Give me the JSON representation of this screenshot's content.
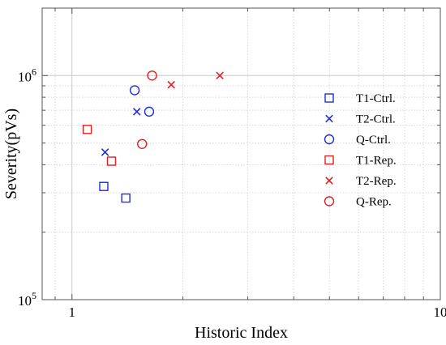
{
  "chart_data": {
    "type": "scatter",
    "xlabel": "Historic Index",
    "ylabel": "Severity(pVs)",
    "xscale": "log",
    "yscale": "log",
    "xlim": [
      0.83,
      10
    ],
    "ylim": [
      100000,
      2000000
    ],
    "x_ticks": [
      {
        "value": 1,
        "label": "1"
      },
      {
        "value": 10,
        "label": "10"
      }
    ],
    "y_ticks": [
      {
        "value": 100000,
        "base": "10",
        "exp": "5"
      },
      {
        "value": 1000000,
        "base": "10",
        "exp": "6"
      }
    ],
    "grid": true,
    "legend_position": "right",
    "series": [
      {
        "name": "T1-Ctrl.",
        "marker": "square",
        "color": "#1f2fd0",
        "points": [
          {
            "x": 1.22,
            "y": 320000
          },
          {
            "x": 1.4,
            "y": 284000
          }
        ]
      },
      {
        "name": "T2-Ctrl.",
        "marker": "x",
        "color": "#1f2fd0",
        "points": [
          {
            "x": 1.23,
            "y": 455000
          },
          {
            "x": 1.5,
            "y": 690000
          }
        ]
      },
      {
        "name": "Q-Ctrl.",
        "marker": "circle",
        "color": "#1f2fd0",
        "points": [
          {
            "x": 1.48,
            "y": 860000
          },
          {
            "x": 1.62,
            "y": 690000
          }
        ]
      },
      {
        "name": "T1-Rep.",
        "marker": "square",
        "color": "#e02020",
        "points": [
          {
            "x": 1.1,
            "y": 575000
          },
          {
            "x": 1.28,
            "y": 415000
          }
        ]
      },
      {
        "name": "T2-Rep.",
        "marker": "x",
        "color": "#e02020",
        "points": [
          {
            "x": 1.86,
            "y": 910000
          },
          {
            "x": 2.52,
            "y": 1000000
          }
        ]
      },
      {
        "name": "Q-Rep.",
        "marker": "circle",
        "color": "#e02020",
        "points": [
          {
            "x": 1.65,
            "y": 1000000
          },
          {
            "x": 1.55,
            "y": 495000
          }
        ]
      }
    ]
  }
}
